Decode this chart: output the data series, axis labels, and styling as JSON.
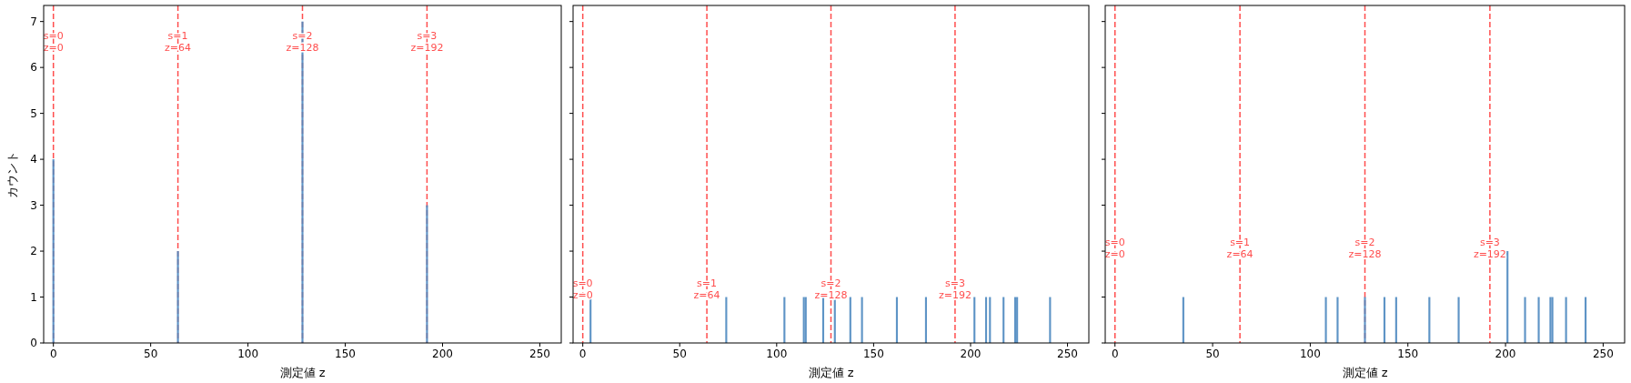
{
  "chart_data": [
    {
      "type": "histogram",
      "xlabel": "測定値 z",
      "ylabel": "カウント",
      "color": "#4c88c0",
      "bins": [
        -0.5,
        0.5,
        63.5,
        64.5,
        127.5,
        128.5,
        191.5,
        192.5
      ],
      "values": [
        4,
        0,
        2,
        0,
        7,
        0,
        3
      ],
      "xlim": [
        -5,
        261
      ],
      "ylim": [
        0,
        7.35
      ],
      "xticks": [
        0,
        50,
        100,
        150,
        200,
        250
      ],
      "yticks": [
        0,
        1,
        2,
        3,
        4,
        5,
        6,
        7
      ],
      "grid": false,
      "ref_lines": [
        {
          "axis": "x",
          "value": 0,
          "label": "s=0\nz=0",
          "color": "#ff4d4d",
          "line_style": "dashed"
        },
        {
          "axis": "x",
          "value": 64,
          "label": "s=1\nz=64",
          "color": "#ff4d4d",
          "line_style": "dashed"
        },
        {
          "axis": "x",
          "value": 128,
          "label": "s=2\nz=128",
          "color": "#ff4d4d",
          "line_style": "dashed"
        },
        {
          "axis": "x",
          "value": 192,
          "label": "s=3\nz=192",
          "color": "#ff4d4d",
          "line_style": "dashed"
        }
      ]
    },
    {
      "type": "histogram",
      "xlabel": "測定値 z",
      "color": "#4c88c0",
      "bins": [
        3.5,
        4.5,
        73.5,
        74.5,
        103.5,
        104.5,
        113.5,
        114.5,
        115.5,
        123.5,
        124.5,
        129.5,
        130.5,
        137.5,
        138.5,
        143.5,
        144.5,
        161.5,
        162.5,
        176.5,
        177.5,
        201.5,
        202.5,
        207.5,
        208.5,
        209.5,
        210.5,
        216.5,
        217.5,
        222.5,
        223.5,
        224.5,
        240.5,
        241.5
      ],
      "values": [
        1,
        0,
        1,
        0,
        1,
        0,
        1,
        1,
        0,
        1,
        0,
        1,
        0,
        1,
        0,
        1,
        0,
        1,
        0,
        1,
        0,
        1,
        0,
        1,
        0,
        1,
        0,
        1,
        0,
        1,
        1,
        0,
        1
      ],
      "xlim": [
        -5,
        261
      ],
      "ylim": [
        0,
        7.35
      ],
      "xticks": [
        0,
        50,
        100,
        150,
        200,
        250
      ],
      "yticks": [
        0,
        1,
        2,
        3,
        4,
        5,
        6,
        7
      ],
      "tick_labels": "x",
      "grid": false,
      "ref_lines": [
        {
          "axis": "x",
          "value": 0,
          "label": "s=0\nz=0",
          "color": "#ff4d4d",
          "line_style": "dashed"
        },
        {
          "axis": "x",
          "value": 64,
          "label": "s=1\nz=64",
          "color": "#ff4d4d",
          "line_style": "dashed"
        },
        {
          "axis": "x",
          "value": 128,
          "label": "s=2\nz=128",
          "color": "#ff4d4d",
          "line_style": "dashed"
        },
        {
          "axis": "x",
          "value": 192,
          "label": "s=3\nz=192",
          "color": "#ff4d4d",
          "line_style": "dashed"
        }
      ]
    },
    {
      "type": "histogram",
      "xlabel": "測定値 z",
      "color": "#4c88c0",
      "bins": [
        34.5,
        35.5,
        107.5,
        108.5,
        113.5,
        114.5,
        127.5,
        128.5,
        137.5,
        138.5,
        143.5,
        144.5,
        160.5,
        161.5,
        175.5,
        176.5,
        200.5,
        201.5,
        209.5,
        210.5,
        216.5,
        217.5,
        222.5,
        223.5,
        224.5,
        230.5,
        231.5,
        240.5,
        241.5
      ],
      "values": [
        1,
        0,
        1,
        0,
        1,
        0,
        1,
        0,
        1,
        0,
        1,
        0,
        1,
        0,
        1,
        0,
        2,
        0,
        1,
        0,
        1,
        0,
        1,
        1,
        0,
        1,
        0,
        1
      ],
      "xlim": [
        -5,
        261
      ],
      "ylim": [
        0,
        7.35
      ],
      "xticks": [
        0,
        50,
        100,
        150,
        200,
        250
      ],
      "yticks": [
        0,
        1,
        2,
        3,
        4,
        5,
        6,
        7
      ],
      "tick_labels": "x",
      "grid": false,
      "ref_lines": [
        {
          "axis": "x",
          "value": 0,
          "label": "s=0\nz=0",
          "color": "#ff4d4d",
          "line_style": "dashed"
        },
        {
          "axis": "x",
          "value": 64,
          "label": "s=1\nz=64",
          "color": "#ff4d4d",
          "line_style": "dashed"
        },
        {
          "axis": "x",
          "value": 128,
          "label": "s=2\nz=128",
          "color": "#ff4d4d",
          "line_style": "dashed"
        },
        {
          "axis": "x",
          "value": 192,
          "label": "s=3\nz=192",
          "color": "#ff4d4d",
          "line_style": "dashed"
        }
      ]
    }
  ]
}
